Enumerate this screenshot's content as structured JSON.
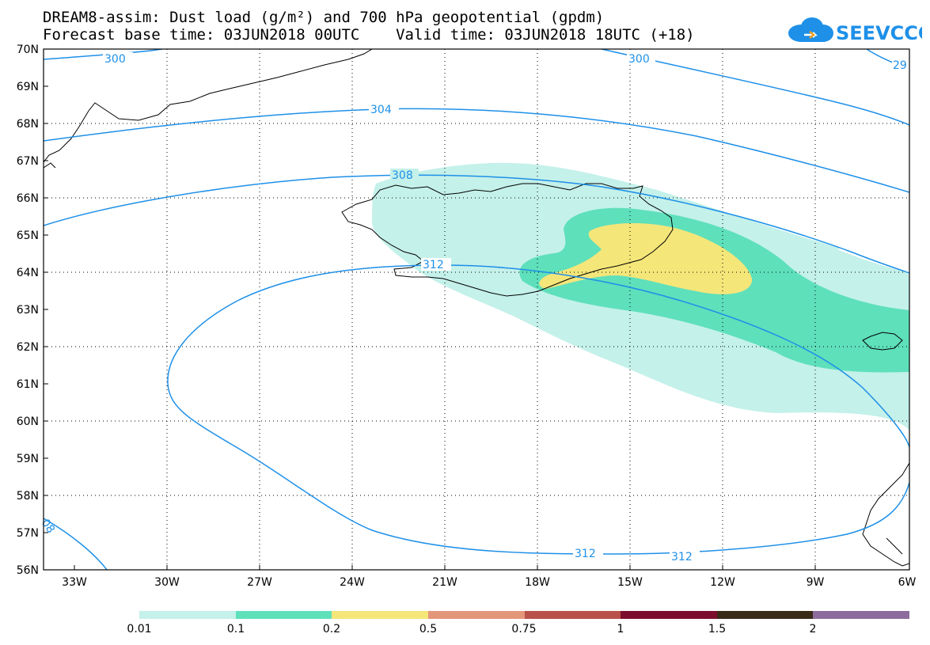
{
  "header": {
    "title_line1": "DREAM8-assim: Dust load (g/m²) and 700 hPa geopotential (gpdm)",
    "title_line2": "Forecast base time: 03JUN2018 00UTC    Valid time: 03JUN2018 18UTC (+18)",
    "logo_text": "SEEVCCC"
  },
  "map": {
    "lat_labels": [
      "70N",
      "69N",
      "68N",
      "67N",
      "66N",
      "65N",
      "64N",
      "63N",
      "62N",
      "61N",
      "60N",
      "59N",
      "58N",
      "57N",
      "56N"
    ],
    "lon_labels": [
      "33W",
      "30W",
      "27W",
      "24W",
      "21W",
      "18W",
      "15W",
      "12W",
      "9W",
      "6W"
    ],
    "contour_labels": [
      "300",
      "300",
      "29",
      "304",
      "308",
      "312",
      "312",
      "312",
      "08"
    ]
  },
  "legend": {
    "colors": [
      "#c4f1ea",
      "#5ee0bb",
      "#f5e67a",
      "#e4967b",
      "#b8524a",
      "#7d0d2d",
      "#3a2a18",
      "#8e6b9d"
    ],
    "labels": [
      "0.01",
      "0.1",
      "0.2",
      "0.5",
      "0.75",
      "1",
      "1.5",
      "2"
    ]
  },
  "colors": {
    "contour": "#1e90e8",
    "dust_low": "#c4f1ea",
    "dust_mid": "#5ee0bb",
    "dust_high": "#f5e67a"
  }
}
